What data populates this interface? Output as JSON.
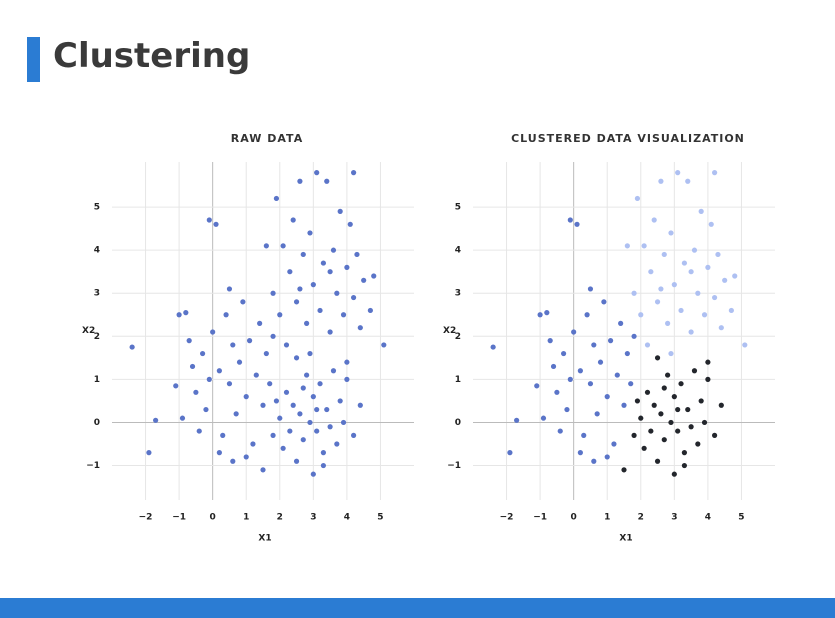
{
  "title": "Clustering",
  "chart_data": [
    {
      "type": "scatter",
      "title": "RAW DATA",
      "x_label": "X1",
      "y_label": "X2",
      "color": "#5a74c8",
      "xlim": [
        -3,
        6
      ],
      "ylim": [
        -1.8,
        6
      ],
      "xticks": [
        {
          "value": -2,
          "label": "−2"
        },
        {
          "value": -1,
          "label": "−1"
        },
        0,
        1,
        2,
        3,
        4,
        5
      ],
      "yticks": [
        {
          "value": -1,
          "label": "−1"
        },
        0,
        1,
        2,
        3,
        4,
        5
      ],
      "grid": true,
      "x": [
        -1.9,
        -1.7,
        -2.4,
        -1.1,
        -1,
        -0.8,
        -0.6,
        -0.5,
        -0.7,
        -0.3,
        -0.2,
        0,
        0.1,
        -0.1,
        0.2,
        0.3,
        0.4,
        0.5,
        0.6,
        0.7,
        0.8,
        0.9,
        1,
        1.1,
        1.2,
        1.3,
        1.4,
        1.5,
        1.6,
        1.7,
        0.2,
        -0.4,
        1,
        0.5,
        -0.9,
        1.8,
        0.6,
        -0.1,
        1.8,
        2.0,
        2.1,
        2.3,
        2.4,
        2.5,
        2.6,
        2.7,
        2.8,
        2.9,
        3.0,
        3.1,
        3.2,
        3.3,
        3.4,
        3.5,
        3.6,
        3.7,
        3.8,
        3.9,
        4.0,
        4.1,
        4.2,
        4.3,
        4.4,
        4.5,
        4.8,
        5.1,
        4.7,
        2.2,
        2.6,
        3.5,
        2.9,
        4.2,
        1.6,
        1.9,
        1.5,
        1.8,
        1.9,
        2.0,
        2.1,
        2.2,
        2.3,
        2.4,
        2.5,
        2.6,
        2.7,
        2.8,
        2.9,
        3.0,
        3.0,
        3.1,
        3.2,
        3.3,
        3.4,
        3.5,
        3.6,
        3.7,
        3.8,
        3.9,
        4.0,
        4.2,
        4.4,
        4.0,
        2.5,
        3.3,
        2.7,
        3.1
      ],
      "values": [
        -0.7,
        0.05,
        1.75,
        0.85,
        2.5,
        2.55,
        1.3,
        0.7,
        1.9,
        1.6,
        0.3,
        2.1,
        4.6,
        4.7,
        1.2,
        -0.3,
        2.5,
        0.9,
        1.8,
        0.2,
        1.4,
        2.8,
        0.6,
        1.9,
        -0.5,
        1.1,
        2.3,
        0.4,
        1.6,
        0.9,
        -0.7,
        -0.2,
        -0.8,
        3.1,
        0.1,
        2.0,
        -0.9,
        1.0,
        3.0,
        2.5,
        4.1,
        3.5,
        4.7,
        2.8,
        5.6,
        3.9,
        2.3,
        4.4,
        3.2,
        5.8,
        2.6,
        3.7,
        5.6,
        2.1,
        4.0,
        3.0,
        4.9,
        2.5,
        3.6,
        4.6,
        2.9,
        3.9,
        2.2,
        3.3,
        3.4,
        1.8,
        2.6,
        1.8,
        3.1,
        3.5,
        1.6,
        5.8,
        4.1,
        5.2,
        -1.1,
        -0.3,
        0.5,
        0.1,
        -0.6,
        0.7,
        -0.2,
        0.4,
        -0.9,
        0.2,
        -0.4,
        1.1,
        0.0,
        -1.2,
        0.6,
        -0.2,
        0.9,
        -0.7,
        0.3,
        -0.1,
        1.2,
        -0.5,
        0.5,
        0.0,
        1.0,
        -0.3,
        0.4,
        1.4,
        1.5,
        -1.0,
        0.8,
        0.3
      ]
    },
    {
      "type": "scatter",
      "title": "CLUSTERED DATA VISUALIZATION",
      "x_label": "X1",
      "y_label": "X2",
      "xlim": [
        -3,
        6
      ],
      "ylim": [
        -1.8,
        6
      ],
      "xticks": [
        {
          "value": -2,
          "label": "−2"
        },
        {
          "value": -1,
          "label": "−1"
        },
        0,
        1,
        2,
        3,
        4,
        5
      ],
      "yticks": [
        {
          "value": -1,
          "label": "−1"
        },
        0,
        1,
        2,
        3,
        4,
        5
      ],
      "grid": true,
      "series": [
        {
          "color": "#5a74c8",
          "x": [
            -1.9,
            -1.7,
            -2.4,
            -1.1,
            -1,
            -0.8,
            -0.6,
            -0.5,
            -0.7,
            -0.3,
            -0.2,
            0,
            0.1,
            -0.1,
            0.2,
            0.3,
            0.4,
            0.5,
            0.6,
            0.7,
            0.8,
            0.9,
            1,
            1.1,
            1.2,
            1.3,
            1.4,
            1.5,
            1.6,
            1.7,
            0.2,
            -0.4,
            1,
            0.5,
            -0.9,
            1.8,
            0.6,
            -0.1
          ],
          "values": [
            -0.7,
            0.05,
            1.75,
            0.85,
            2.5,
            2.55,
            1.3,
            0.7,
            1.9,
            1.6,
            0.3,
            2.1,
            4.6,
            4.7,
            1.2,
            -0.3,
            2.5,
            0.9,
            1.8,
            0.2,
            1.4,
            2.8,
            0.6,
            1.9,
            -0.5,
            1.1,
            2.3,
            0.4,
            1.6,
            0.9,
            -0.7,
            -0.2,
            -0.8,
            3.1,
            0.1,
            2.0,
            -0.9,
            1.0
          ]
        },
        {
          "color": "#aec0f2",
          "x": [
            1.8,
            2.0,
            2.1,
            2.3,
            2.4,
            2.5,
            2.6,
            2.7,
            2.8,
            2.9,
            3.0,
            3.1,
            3.2,
            3.3,
            3.4,
            3.5,
            3.6,
            3.7,
            3.8,
            3.9,
            4.0,
            4.1,
            4.2,
            4.3,
            4.4,
            4.5,
            4.8,
            5.1,
            4.7,
            2.2,
            2.6,
            3.5,
            2.9,
            4.2,
            1.6,
            1.9
          ],
          "values": [
            3.0,
            2.5,
            4.1,
            3.5,
            4.7,
            2.8,
            5.6,
            3.9,
            2.3,
            4.4,
            3.2,
            5.8,
            2.6,
            3.7,
            5.6,
            2.1,
            4.0,
            3.0,
            4.9,
            2.5,
            3.6,
            4.6,
            2.9,
            3.9,
            2.2,
            3.3,
            3.4,
            1.8,
            2.6,
            1.8,
            3.1,
            3.5,
            1.6,
            5.8,
            4.1,
            5.2
          ]
        },
        {
          "color": "#23262c",
          "x": [
            1.5,
            1.8,
            1.9,
            2.0,
            2.1,
            2.2,
            2.3,
            2.4,
            2.5,
            2.6,
            2.7,
            2.8,
            2.9,
            3.0,
            3.0,
            3.1,
            3.2,
            3.3,
            3.4,
            3.5,
            3.6,
            3.7,
            3.8,
            3.9,
            4.0,
            4.2,
            4.4,
            4.0,
            2.5,
            3.3,
            2.7,
            3.1
          ],
          "values": [
            -1.1,
            -0.3,
            0.5,
            0.1,
            -0.6,
            0.7,
            -0.2,
            0.4,
            -0.9,
            0.2,
            -0.4,
            1.1,
            0.0,
            -1.2,
            0.6,
            -0.2,
            0.9,
            -0.7,
            0.3,
            -0.1,
            1.2,
            -0.5,
            0.5,
            0.0,
            1.0,
            -0.3,
            0.4,
            1.4,
            1.5,
            -1.0,
            0.8,
            0.3
          ]
        }
      ]
    }
  ]
}
